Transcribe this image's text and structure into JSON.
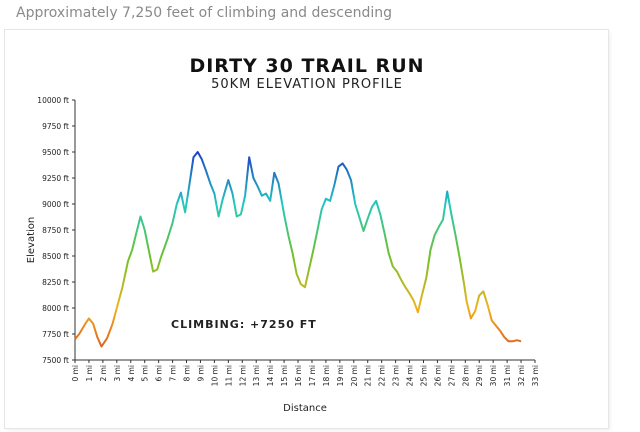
{
  "caption": "Approximately 7,250 feet of climbing and descending",
  "chart_data": {
    "type": "line",
    "title": "DIRTY 30 TRAIL RUN",
    "subtitle": "50KM ELEVATION PROFILE",
    "xlabel": "Distance",
    "ylabel": "Elevation",
    "annotation": "CLIMBING: +7250 FT",
    "xlim": [
      0,
      33
    ],
    "ylim": [
      7500,
      10000
    ],
    "grid": false,
    "y_ticks": [
      7500,
      7750,
      8000,
      8250,
      8500,
      8750,
      9000,
      9250,
      9500,
      9750,
      10000
    ],
    "y_tick_labels": [
      "7500 ft",
      "7750 ft",
      "8000 ft",
      "8250 ft",
      "8500 ft",
      "8750 ft",
      "9000 ft",
      "9250 ft",
      "9500 ft",
      "9750 ft",
      "10000 ft"
    ],
    "x_ticks": [
      0,
      1,
      2,
      3,
      4,
      5,
      6,
      7,
      8,
      9,
      10,
      11,
      12,
      13,
      14,
      15,
      16,
      17,
      18,
      19,
      20,
      21,
      22,
      23,
      24,
      25,
      26,
      27,
      28,
      29,
      30,
      31,
      32,
      33
    ],
    "x_tick_labels": [
      "0 mi",
      "1 mi",
      "2 mi",
      "3 mi",
      "4 mi",
      "5 mi",
      "6 mi",
      "7 mi",
      "8 mi",
      "9 mi",
      "10 mi",
      "11 mi",
      "12 mi",
      "13 mi",
      "14 mi",
      "15 mi",
      "16 mi",
      "17 mi",
      "18 mi",
      "19 mi",
      "20 mi",
      "21 mi",
      "22 mi",
      "23 mi",
      "24 mi",
      "25 mi",
      "26 mi",
      "27 mi",
      "28 mi",
      "29 mi",
      "30 mi",
      "31 mi",
      "32 mi",
      "33 mi"
    ],
    "color_scale": [
      "#d9441c",
      "#f0b21c",
      "#6ec22a",
      "#22c8c0",
      "#2040c8"
    ],
    "x": [
      0,
      0.3,
      0.7,
      1.0,
      1.3,
      1.6,
      1.9,
      2.3,
      2.7,
      3.0,
      3.4,
      3.8,
      4.1,
      4.4,
      4.7,
      5.0,
      5.3,
      5.6,
      5.9,
      6.2,
      6.6,
      7.0,
      7.3,
      7.6,
      7.9,
      8.2,
      8.5,
      8.8,
      9.1,
      9.4,
      9.7,
      10.0,
      10.3,
      10.6,
      11.0,
      11.3,
      11.6,
      11.9,
      12.2,
      12.5,
      12.8,
      13.1,
      13.4,
      13.7,
      14.0,
      14.3,
      14.6,
      15.0,
      15.3,
      15.6,
      15.9,
      16.2,
      16.5,
      16.8,
      17.1,
      17.4,
      17.7,
      18.0,
      18.3,
      18.6,
      18.9,
      19.2,
      19.5,
      19.8,
      20.1,
      20.4,
      20.7,
      21.0,
      21.3,
      21.6,
      21.9,
      22.2,
      22.5,
      22.8,
      23.1,
      23.4,
      23.7,
      24.0,
      24.3,
      24.6,
      24.9,
      25.2,
      25.5,
      25.8,
      26.1,
      26.4,
      26.7,
      27.0,
      27.3,
      27.6,
      27.9,
      28.1,
      28.4,
      28.7,
      29.0,
      29.3,
      29.6,
      29.9,
      30.2,
      30.5,
      30.8,
      31.1,
      31.4,
      31.7,
      32.0
    ],
    "y": [
      7700,
      7750,
      7840,
      7900,
      7850,
      7720,
      7630,
      7710,
      7850,
      8000,
      8200,
      8450,
      8560,
      8720,
      8880,
      8750,
      8550,
      8350,
      8370,
      8500,
      8650,
      8820,
      9000,
      9110,
      8920,
      9180,
      9450,
      9500,
      9430,
      9320,
      9200,
      9100,
      8880,
      9050,
      9230,
      9100,
      8880,
      8900,
      9080,
      9450,
      9250,
      9170,
      9080,
      9100,
      9030,
      9300,
      9200,
      8900,
      8700,
      8530,
      8330,
      8230,
      8200,
      8380,
      8560,
      8750,
      8950,
      9050,
      9030,
      9180,
      9360,
      9390,
      9330,
      9230,
      9000,
      8870,
      8740,
      8860,
      8970,
      9030,
      8900,
      8720,
      8530,
      8400,
      8350,
      8270,
      8200,
      8140,
      8070,
      7960,
      8130,
      8290,
      8560,
      8700,
      8780,
      8850,
      9120,
      8900,
      8700,
      8480,
      8240,
      8060,
      7900,
      7970,
      8120,
      8160,
      8030,
      7880,
      7830,
      7780,
      7720,
      7680,
      7680,
      7690,
      7680
    ]
  }
}
